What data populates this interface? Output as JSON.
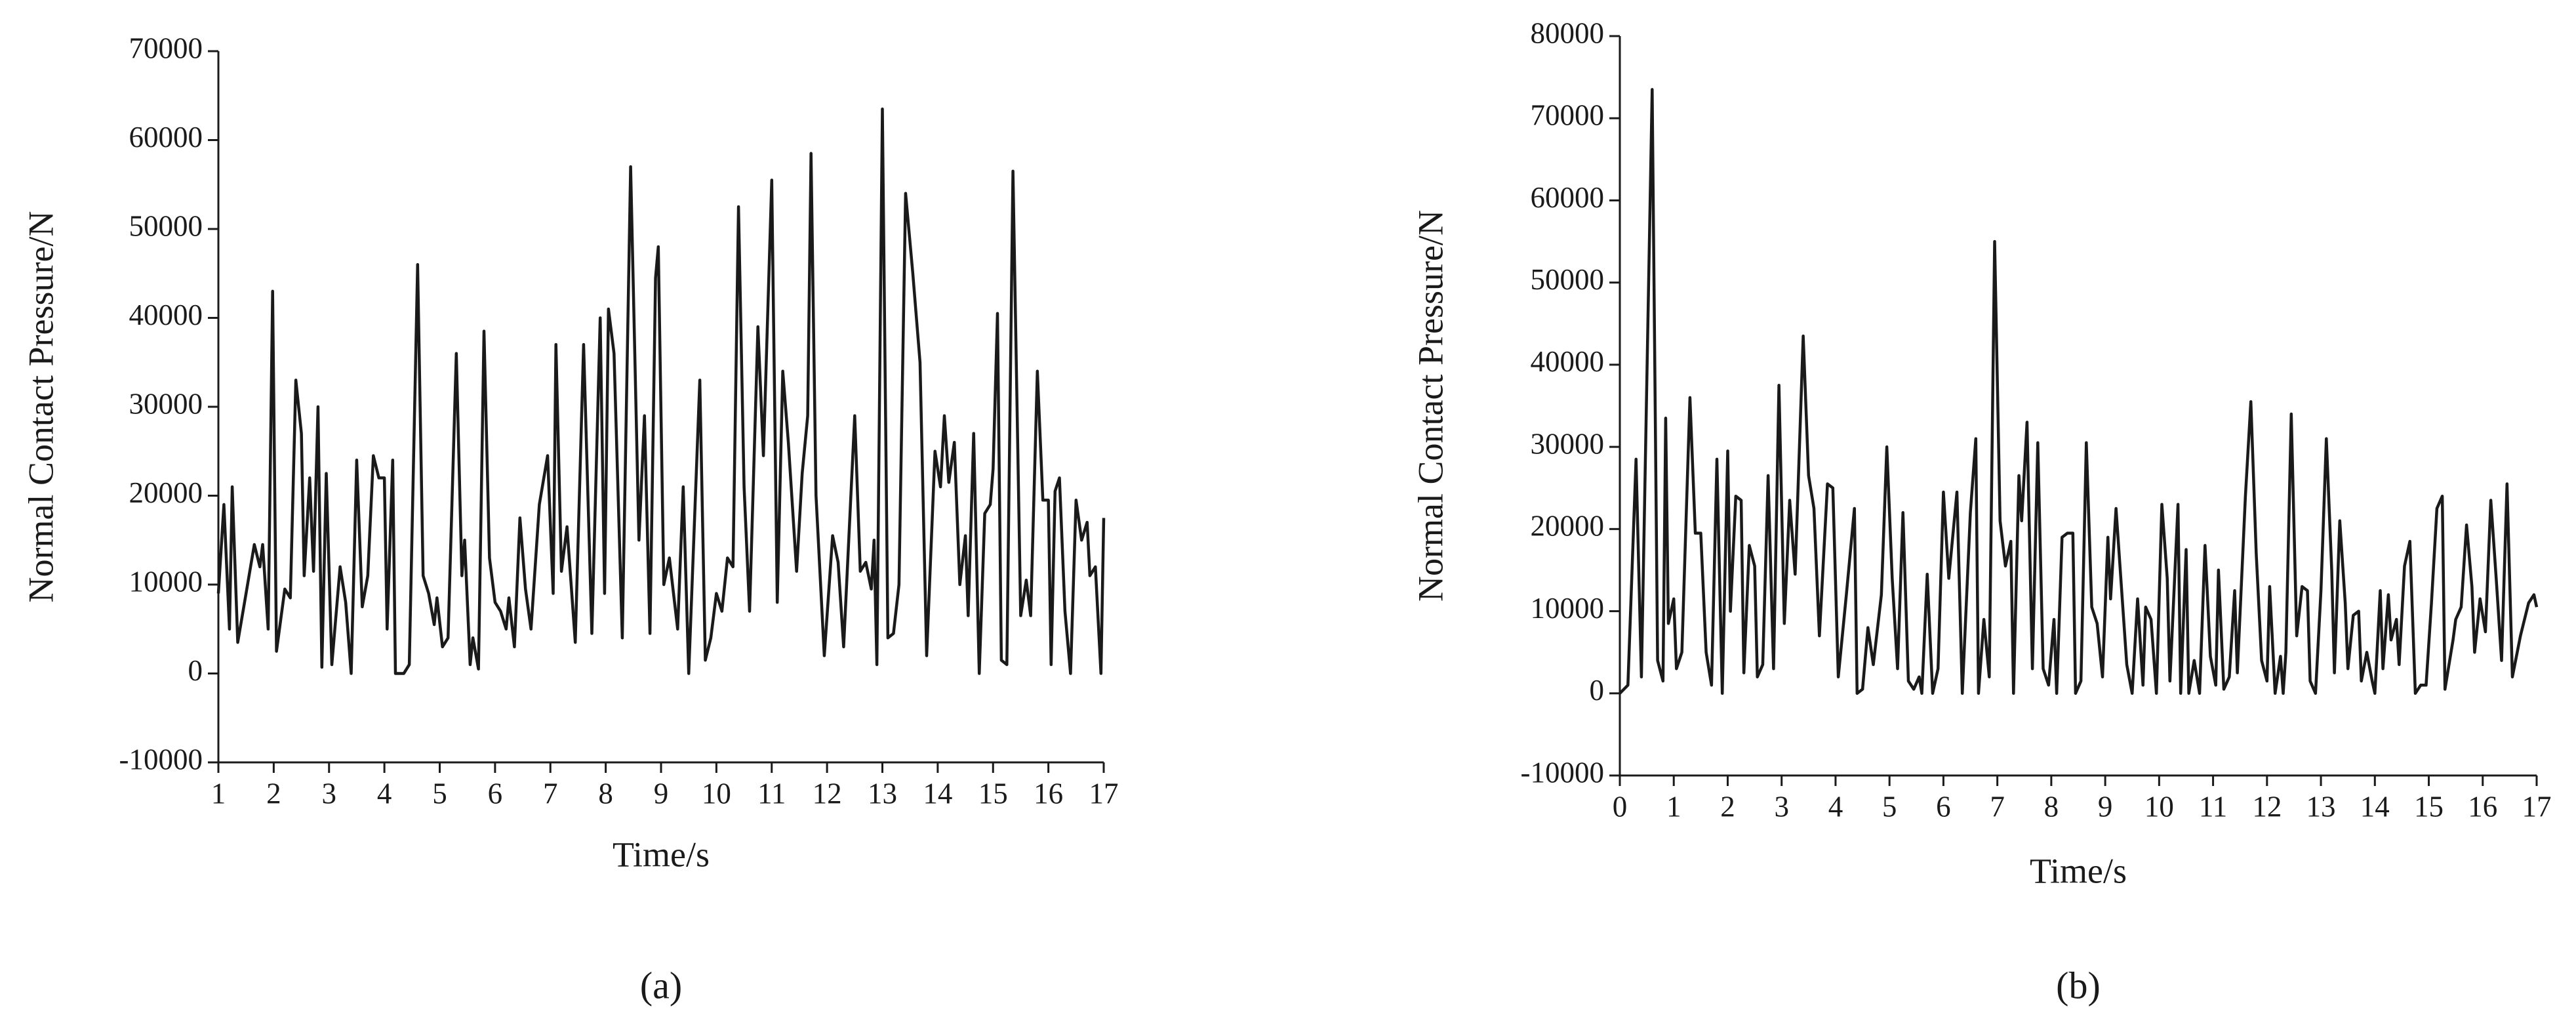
{
  "chart_data": [
    {
      "type": "line",
      "label": "(a)",
      "xlabel": "Time/s",
      "ylabel": "Normal Contact Pressure/N",
      "color": "#1a1a1a",
      "xlim": [
        1,
        17
      ],
      "ylim": [
        -10000,
        70000
      ],
      "xticks": [
        1,
        2,
        3,
        4,
        5,
        6,
        7,
        8,
        9,
        10,
        11,
        12,
        13,
        14,
        15,
        16,
        17
      ],
      "yticks": [
        -10000,
        0,
        10000,
        20000,
        30000,
        40000,
        50000,
        60000,
        70000
      ],
      "x": [
        1.0,
        1.1,
        1.2,
        1.25,
        1.35,
        1.5,
        1.65,
        1.75,
        1.8,
        1.9,
        1.98,
        2.05,
        2.2,
        2.3,
        2.4,
        2.5,
        2.55,
        2.65,
        2.72,
        2.8,
        2.87,
        2.95,
        3.05,
        3.2,
        3.3,
        3.4,
        3.5,
        3.6,
        3.7,
        3.8,
        3.9,
        4.0,
        4.05,
        4.15,
        4.2,
        4.35,
        4.45,
        4.6,
        4.7,
        4.8,
        4.9,
        4.95,
        5.05,
        5.15,
        5.3,
        5.4,
        5.45,
        5.55,
        5.6,
        5.7,
        5.8,
        5.9,
        6.0,
        6.1,
        6.2,
        6.25,
        6.35,
        6.45,
        6.55,
        6.65,
        6.8,
        6.95,
        7.05,
        7.1,
        7.2,
        7.3,
        7.45,
        7.6,
        7.75,
        7.9,
        7.98,
        8.05,
        8.15,
        8.3,
        8.45,
        8.6,
        8.7,
        8.8,
        8.9,
        8.95,
        9.05,
        9.15,
        9.3,
        9.4,
        9.5,
        9.7,
        9.8,
        9.9,
        10.0,
        10.1,
        10.2,
        10.3,
        10.4,
        10.5,
        10.6,
        10.75,
        10.85,
        11.0,
        11.1,
        11.2,
        11.3,
        11.45,
        11.55,
        11.65,
        11.71,
        11.8,
        11.95,
        12.1,
        12.2,
        12.3,
        12.5,
        12.6,
        12.7,
        12.8,
        12.85,
        12.9,
        13.0,
        13.1,
        13.2,
        13.3,
        13.42,
        13.55,
        13.68,
        13.8,
        13.95,
        14.05,
        14.12,
        14.2,
        14.3,
        14.4,
        14.5,
        14.55,
        14.65,
        14.75,
        14.85,
        14.95,
        15.0,
        15.08,
        15.15,
        15.25,
        15.36,
        15.5,
        15.6,
        15.68,
        15.8,
        15.9,
        16.0,
        16.05,
        16.12,
        16.2,
        16.3,
        16.4,
        16.5,
        16.6,
        16.7,
        16.75,
        16.85,
        16.95,
        17.0
      ],
      "values": [
        9000,
        19000,
        5000,
        21000,
        3500,
        9000,
        14500,
        12000,
        14500,
        5000,
        43000,
        2500,
        9500,
        8500,
        33000,
        27000,
        11000,
        22000,
        11500,
        30000,
        700,
        22500,
        1000,
        12000,
        8000,
        0,
        24000,
        7500,
        11000,
        24500,
        22000,
        22000,
        5000,
        24000,
        0,
        0,
        1000,
        46000,
        11000,
        9000,
        5500,
        8500,
        3000,
        4000,
        36000,
        11000,
        15000,
        1000,
        4000,
        500,
        38500,
        13000,
        8000,
        7000,
        5000,
        8500,
        3000,
        17500,
        9500,
        5000,
        19000,
        24500,
        9000,
        37000,
        11500,
        16500,
        3500,
        37000,
        4500,
        40000,
        9000,
        41000,
        36000,
        4000,
        57000,
        15000,
        29000,
        4500,
        44500,
        48000,
        10000,
        13000,
        5000,
        21000,
        0,
        33000,
        1500,
        4000,
        9000,
        7000,
        13000,
        12000,
        52500,
        21000,
        7000,
        39000,
        24500,
        55500,
        8000,
        34000,
        26000,
        11500,
        22500,
        29000,
        58500,
        20000,
        2000,
        15500,
        12500,
        3000,
        29000,
        11500,
        12500,
        9500,
        15000,
        1000,
        63500,
        4000,
        4500,
        10000,
        54000,
        45000,
        35000,
        2000,
        25000,
        21000,
        29000,
        21500,
        26000,
        10000,
        15500,
        6500,
        27000,
        0,
        18000,
        19000,
        23000,
        40500,
        1500,
        1000,
        56500,
        6500,
        10500,
        6500,
        34000,
        19500,
        19500,
        1000,
        20500,
        22000,
        7000,
        0,
        19500,
        15000,
        17000,
        11000,
        12000,
        0,
        17500
      ]
    },
    {
      "type": "line",
      "label": "(b)",
      "xlabel": "Time/s",
      "ylabel": "Normal Contact Pressure/N",
      "color": "#1a1a1a",
      "xlim": [
        0,
        17
      ],
      "ylim": [
        -10000,
        80000
      ],
      "xticks": [
        0,
        1,
        2,
        3,
        4,
        5,
        6,
        7,
        8,
        9,
        10,
        11,
        12,
        13,
        14,
        15,
        16,
        17
      ],
      "yticks": [
        -10000,
        0,
        10000,
        20000,
        30000,
        40000,
        50000,
        60000,
        70000,
        80000
      ],
      "x": [
        0.0,
        0.15,
        0.3,
        0.4,
        0.6,
        0.7,
        0.8,
        0.85,
        0.9,
        1.0,
        1.05,
        1.15,
        1.3,
        1.4,
        1.5,
        1.6,
        1.7,
        1.8,
        1.9,
        2.0,
        2.05,
        2.15,
        2.25,
        2.3,
        2.4,
        2.5,
        2.55,
        2.65,
        2.75,
        2.85,
        2.95,
        3.05,
        3.15,
        3.25,
        3.4,
        3.5,
        3.6,
        3.7,
        3.85,
        3.95,
        4.05,
        4.2,
        4.35,
        4.4,
        4.5,
        4.6,
        4.7,
        4.85,
        4.95,
        5.05,
        5.15,
        5.25,
        5.35,
        5.45,
        5.55,
        5.6,
        5.7,
        5.8,
        5.9,
        6.0,
        6.1,
        6.25,
        6.35,
        6.5,
        6.6,
        6.65,
        6.75,
        6.85,
        6.95,
        7.05,
        7.15,
        7.25,
        7.3,
        7.4,
        7.45,
        7.55,
        7.65,
        7.75,
        7.85,
        7.95,
        8.05,
        8.1,
        8.2,
        8.3,
        8.4,
        8.45,
        8.55,
        8.65,
        8.75,
        8.85,
        8.95,
        9.05,
        9.1,
        9.2,
        9.3,
        9.4,
        9.5,
        9.6,
        9.7,
        9.75,
        9.85,
        9.95,
        10.05,
        10.15,
        10.2,
        10.35,
        10.4,
        10.5,
        10.55,
        10.65,
        10.75,
        10.85,
        10.95,
        11.05,
        11.1,
        11.2,
        11.3,
        11.4,
        11.45,
        11.6,
        11.7,
        11.8,
        11.9,
        12.0,
        12.05,
        12.15,
        12.25,
        12.3,
        12.35,
        12.45,
        12.55,
        12.65,
        12.75,
        12.8,
        12.9,
        13.0,
        13.1,
        13.2,
        13.25,
        13.35,
        13.45,
        13.5,
        13.6,
        13.7,
        13.75,
        13.85,
        13.95,
        14.0,
        14.1,
        14.15,
        14.25,
        14.3,
        14.4,
        14.45,
        14.55,
        14.65,
        14.75,
        14.85,
        14.95,
        15.05,
        15.15,
        15.25,
        15.3,
        15.45,
        15.5,
        15.6,
        15.7,
        15.8,
        15.85,
        15.95,
        16.05,
        16.15,
        16.25,
        16.35,
        16.45,
        16.55,
        16.7,
        16.85,
        16.95,
        17.0
      ],
      "values": [
        0,
        1000,
        28500,
        2000,
        73500,
        4000,
        1500,
        33500,
        8500,
        11500,
        3000,
        5000,
        36000,
        19500,
        19500,
        5000,
        1000,
        28500,
        0,
        29500,
        10000,
        24000,
        23500,
        2500,
        18000,
        15500,
        2000,
        3500,
        26500,
        3000,
        37500,
        8500,
        23500,
        14500,
        43500,
        26500,
        22500,
        7000,
        25500,
        25000,
        2000,
        12000,
        22500,
        0,
        500,
        8000,
        3500,
        12000,
        30000,
        14000,
        3000,
        22000,
        1500,
        500,
        2000,
        0,
        14500,
        0,
        3000,
        24500,
        14000,
        24500,
        0,
        22000,
        31000,
        0,
        9000,
        2000,
        55000,
        21000,
        15500,
        18500,
        0,
        26500,
        21000,
        33000,
        3000,
        30500,
        3000,
        1000,
        9000,
        0,
        19000,
        19500,
        19500,
        0,
        1500,
        30500,
        10500,
        8500,
        2000,
        19000,
        11500,
        22500,
        13000,
        3500,
        0,
        11500,
        1000,
        10500,
        9000,
        0,
        23000,
        14000,
        1500,
        23000,
        0,
        17500,
        0,
        4000,
        0,
        18000,
        4500,
        1000,
        15000,
        500,
        2000,
        12500,
        2500,
        24000,
        35500,
        17000,
        4000,
        1500,
        13000,
        0,
        4500,
        0,
        5000,
        34000,
        7000,
        13000,
        12500,
        1500,
        0,
        12500,
        31000,
        15000,
        2500,
        21000,
        11000,
        3000,
        9500,
        10000,
        1500,
        5000,
        1500,
        0,
        12500,
        3000,
        12000,
        6500,
        9000,
        3500,
        15500,
        18500,
        0,
        1000,
        1000,
        11000,
        22500,
        24000,
        500,
        6500,
        9000,
        10500,
        20500,
        13000,
        5000,
        11500,
        7500,
        23500,
        14000,
        4000,
        25500,
        2000,
        7000,
        11000,
        12000,
        10500
      ]
    }
  ]
}
